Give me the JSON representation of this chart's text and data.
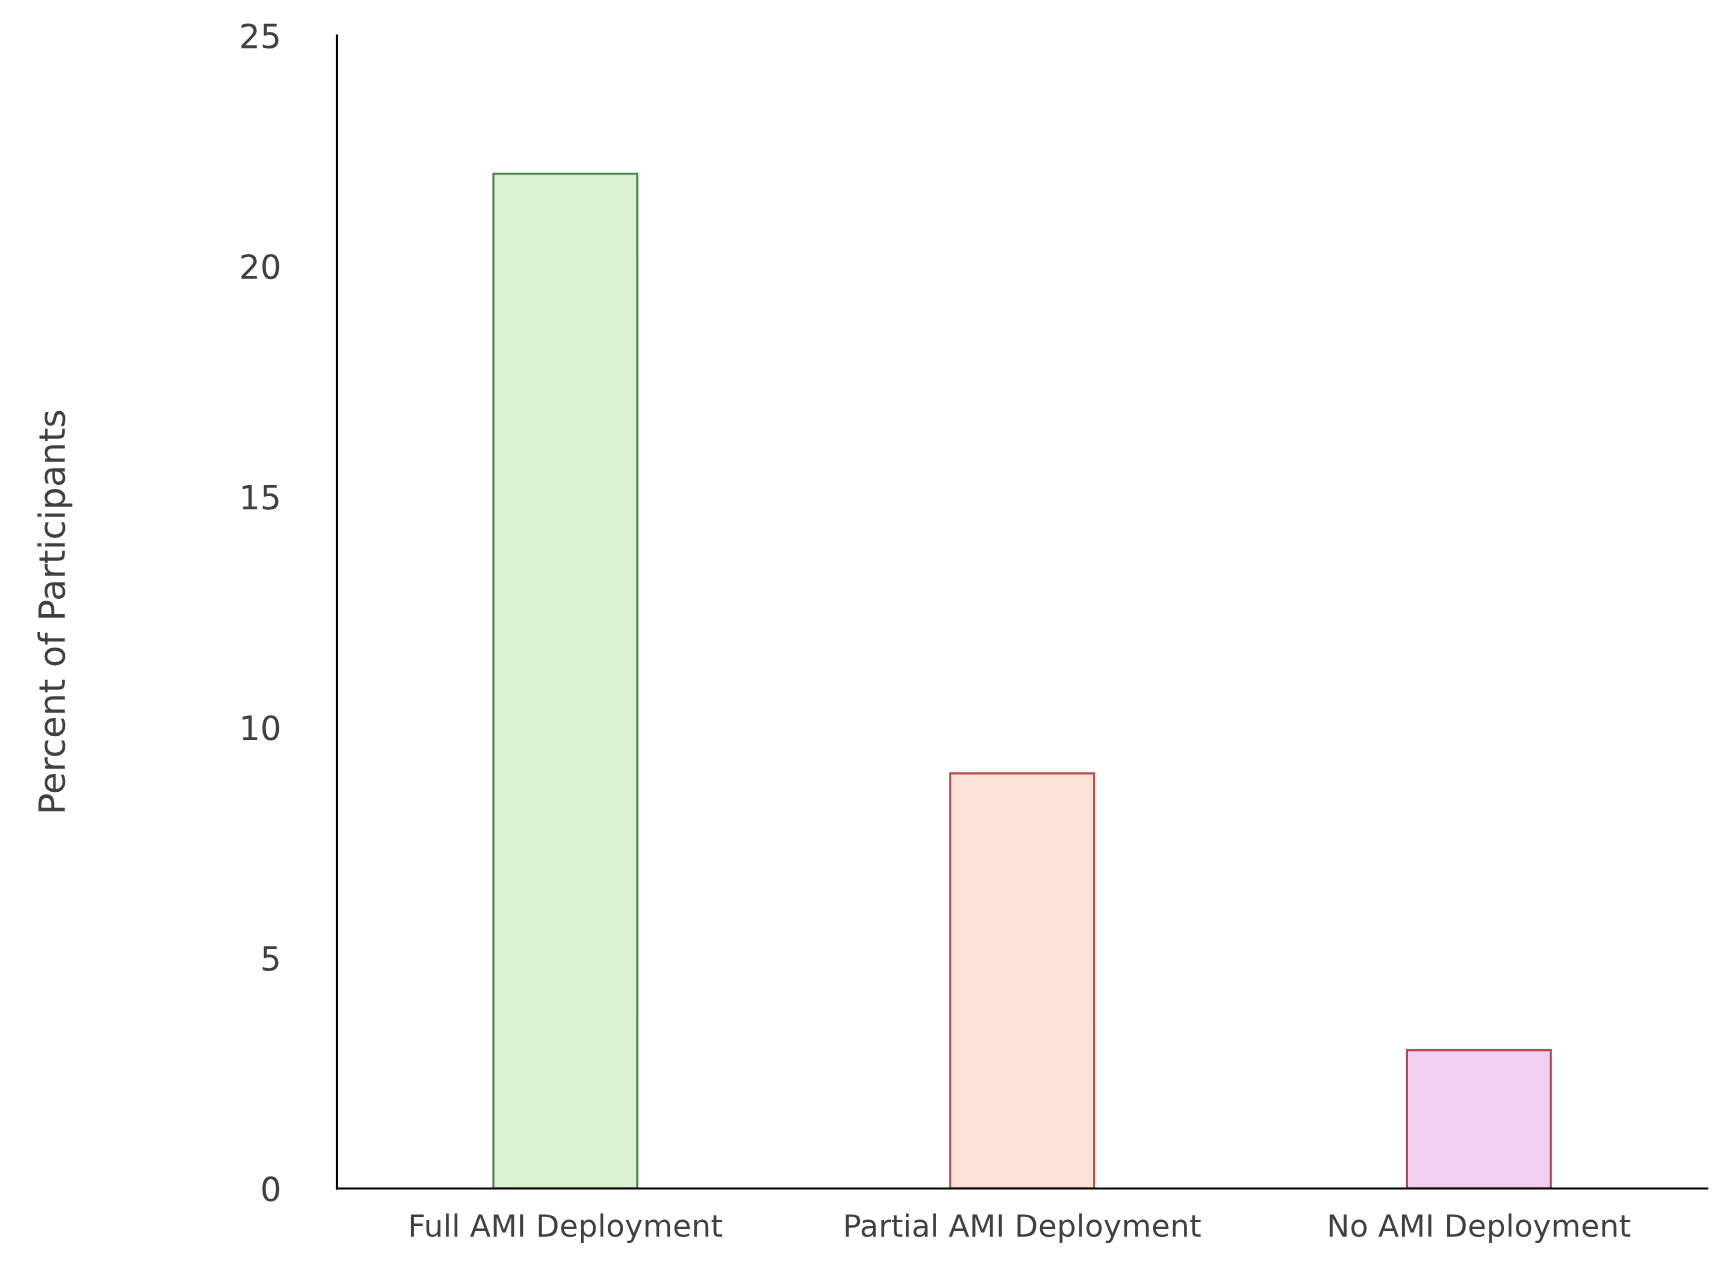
{
  "chart_data": {
    "type": "bar",
    "ylabel": "Percent of Participants",
    "categories": [
      "Full AMI Deployment",
      "Partial AMI Deployment",
      "No AMI Deployment"
    ],
    "values": [
      22,
      9,
      3
    ],
    "colors": [
      "#d9f2d0",
      "#fbe2d5",
      "#f2cfee"
    ],
    "ylim": [
      0,
      25
    ],
    "yticks": [
      0,
      5,
      10,
      15,
      20,
      25
    ],
    "grid": false,
    "legend": false
  }
}
